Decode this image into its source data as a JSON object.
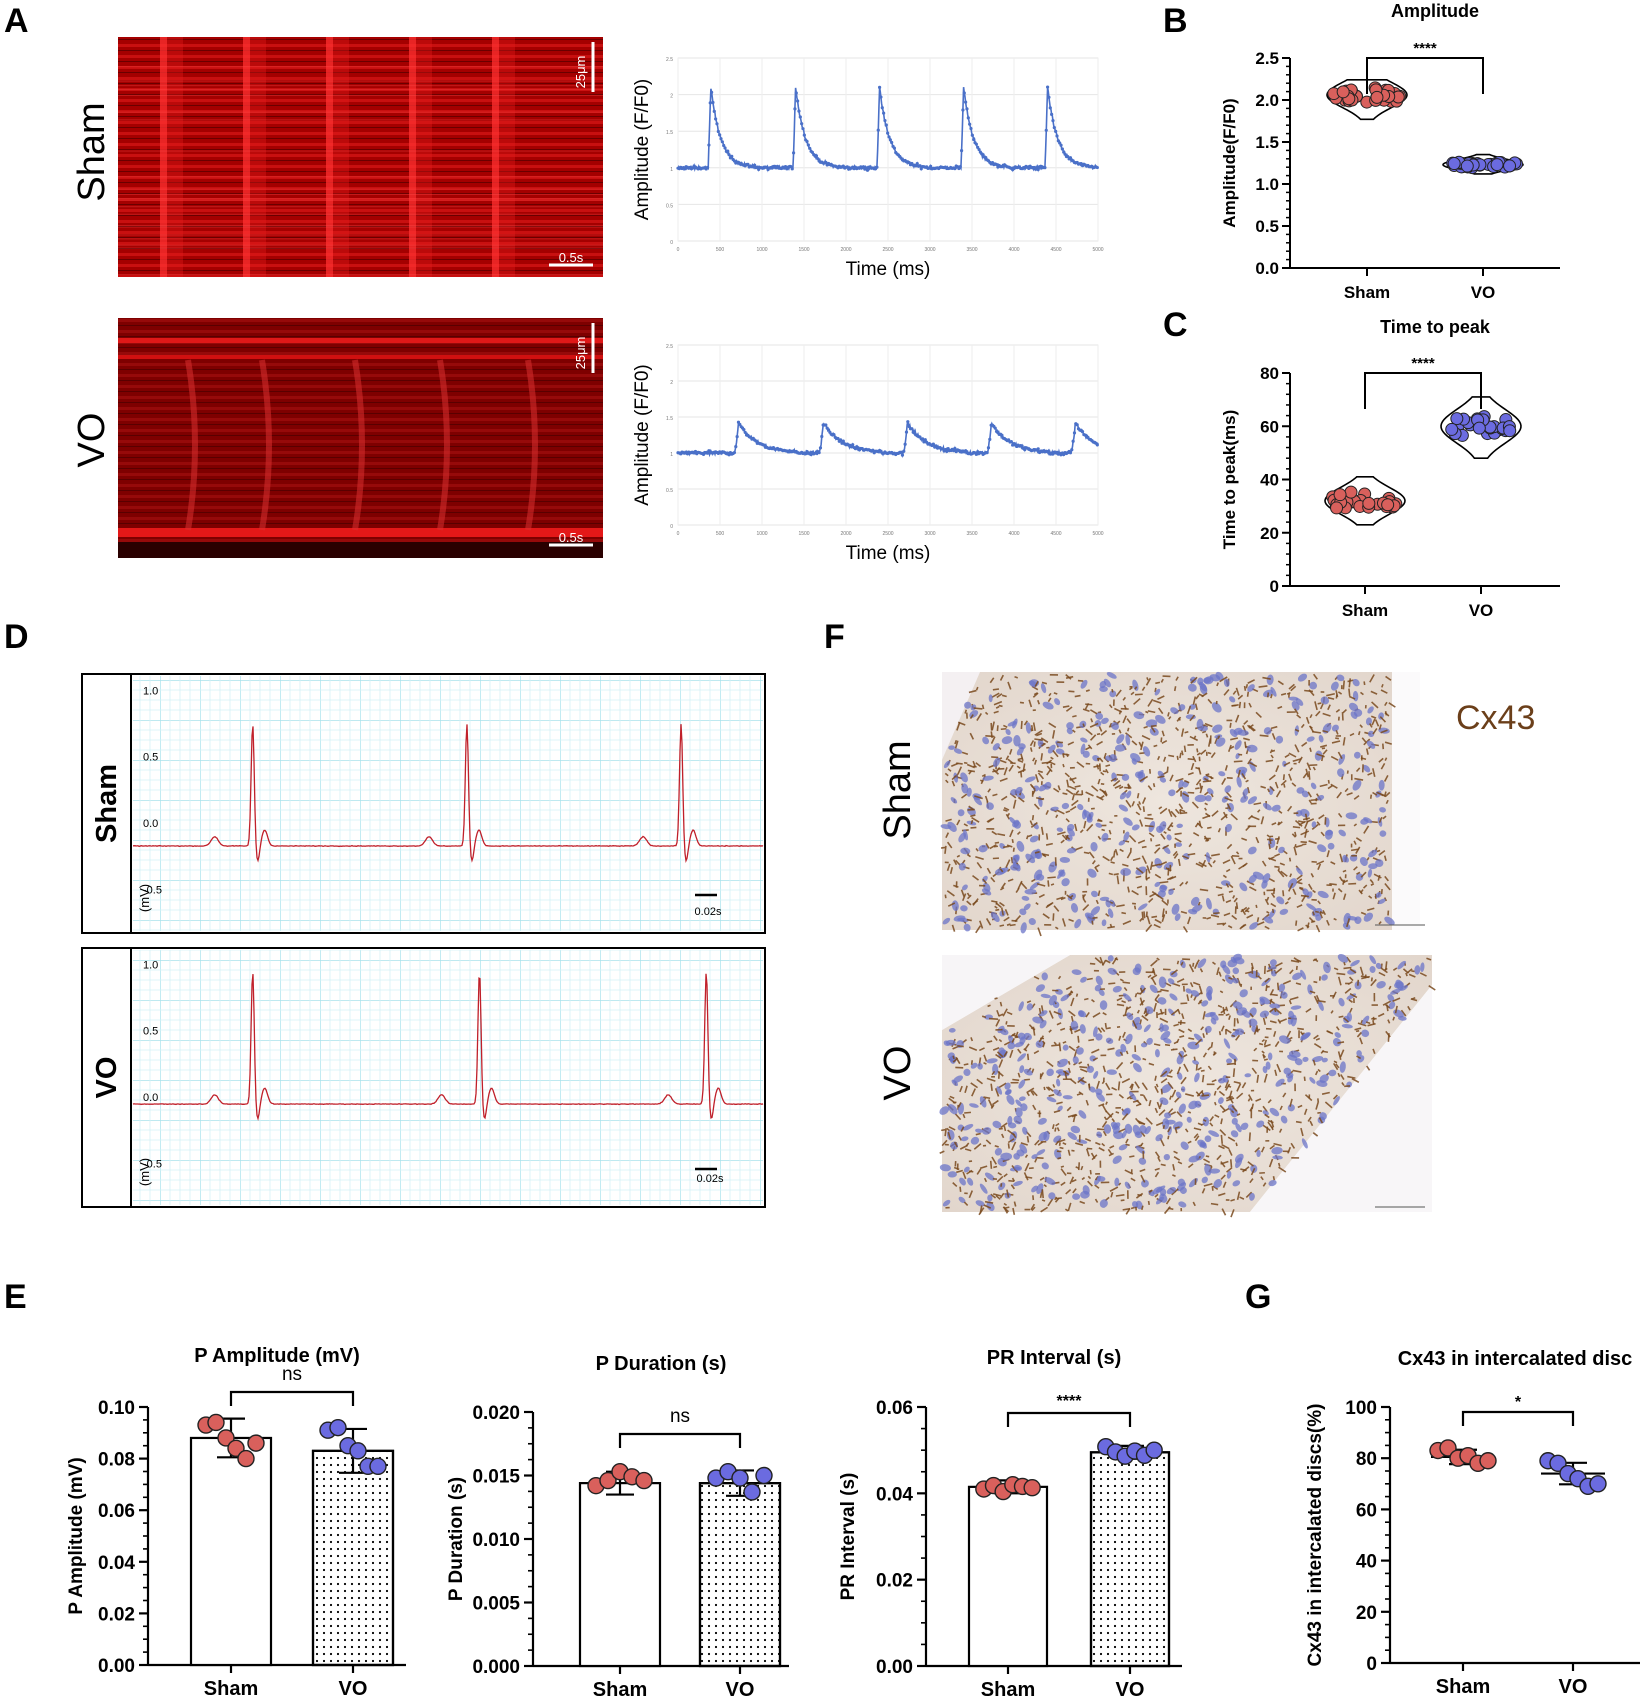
{
  "panels": {
    "A": {
      "letter": "A",
      "groups": [
        {
          "label": "Sham",
          "scale_space": "25μm",
          "scale_time": "0.5s"
        },
        {
          "label": "VO",
          "scale_space": "25μm",
          "scale_time": "0.5s"
        }
      ],
      "trace_ylabel": "Amplitude (F/F0)",
      "trace_xlabel": "Time (ms)",
      "trace_xticks": [
        "0",
        "500",
        "1000",
        "1500",
        "2000",
        "2500",
        "3000",
        "3500",
        "4000",
        "4500",
        "5000"
      ],
      "trace_yticks": [
        "0",
        "0.5",
        "1",
        "1.5",
        "2",
        "2.5"
      ]
    },
    "D": {
      "letter": "D",
      "groups": [
        {
          "label": "Sham",
          "scale": "0.02s"
        },
        {
          "label": "VO",
          "scale": "0.02s"
        }
      ],
      "yticks": [
        "1.0",
        "0.5",
        "0.0",
        "-0.5"
      ],
      "unit": "(mV)"
    },
    "F": {
      "letter": "F",
      "stain": "Cx43",
      "groups": [
        {
          "label": "Sham"
        },
        {
          "label": "VO"
        }
      ]
    },
    "E": {
      "letter": "E"
    },
    "G": {
      "letter": "G"
    }
  },
  "chart_data": [
    {
      "panel": "A",
      "type": "line",
      "group": "Sham",
      "xlabel": "Time (ms)",
      "ylabel": "Amplitude (F/F0)",
      "xlim": [
        0,
        5000
      ],
      "ylim": [
        0,
        2.5
      ],
      "peaks_ms": [
        360,
        1370,
        2370,
        3370,
        4370
      ],
      "baseline": 1.0,
      "peak_value": 2.1
    },
    {
      "panel": "A",
      "type": "line",
      "group": "VO",
      "xlabel": "Time (ms)",
      "ylabel": "Amplitude (F/F0)",
      "xlim": [
        0,
        5000
      ],
      "ylim": [
        0,
        2.5
      ],
      "peaks_ms": [
        720,
        1730,
        2730,
        3730,
        4730
      ],
      "baseline": 1.0,
      "peak_value": 1.42
    },
    {
      "panel": "B",
      "type": "scatter",
      "title": "Amplitude",
      "ylabel": "Amplitude(F/F0)",
      "categories": [
        "Sham",
        "VO"
      ],
      "yticks": [
        "0.0",
        "0.5",
        "1.0",
        "1.5",
        "2.0",
        "2.5"
      ],
      "ylim": [
        0,
        2.5
      ],
      "series": [
        {
          "group": "Sham",
          "center": 2.06,
          "spread": 0.12,
          "min": 1.77,
          "max": 2.24,
          "n": 40
        },
        {
          "group": "VO",
          "center": 1.23,
          "spread": 0.05,
          "min": 1.12,
          "max": 1.35,
          "n": 40
        }
      ],
      "significance": "****"
    },
    {
      "panel": "C",
      "type": "scatter",
      "title": "Time to peak",
      "ylabel": "Time to peak(ms)",
      "categories": [
        "Sham",
        "VO"
      ],
      "yticks": [
        "0",
        "20",
        "40",
        "60",
        "80"
      ],
      "ylim": [
        0,
        80
      ],
      "series": [
        {
          "group": "Sham",
          "center": 32,
          "spread": 4,
          "min": 23,
          "max": 41,
          "n": 30
        },
        {
          "group": "VO",
          "center": 60,
          "spread": 5,
          "min": 48,
          "max": 71,
          "n": 30
        }
      ],
      "significance": "****"
    },
    {
      "panel": "D",
      "type": "line",
      "group": "Sham",
      "ylabel": "(mV)",
      "ylim": [
        -0.7,
        1.1
      ],
      "beats_x": [
        0.19,
        0.53,
        0.87
      ],
      "r_peak": 0.8,
      "baseline": -0.12
    },
    {
      "panel": "D",
      "type": "line",
      "group": "VO",
      "ylabel": "(mV)",
      "ylim": [
        -0.7,
        1.1
      ],
      "beats_x": [
        0.19,
        0.55,
        0.91
      ],
      "r_peak": 1.0,
      "baseline": 0.0
    },
    {
      "panel": "E",
      "type": "bar",
      "title": "P Amplitude (mV)",
      "ylabel": "P Amplitude (mV)",
      "categories": [
        "Sham",
        "VO"
      ],
      "yticks": [
        "0.00",
        "0.02",
        "0.04",
        "0.06",
        "0.08",
        "0.10"
      ],
      "ylim": [
        0,
        0.1
      ],
      "values": [
        0.088,
        0.083
      ],
      "errors": [
        0.0075,
        0.0085
      ],
      "points": [
        [
          0.093,
          0.094,
          0.088,
          0.084,
          0.08,
          0.086
        ],
        [
          0.091,
          0.092,
          0.085,
          0.083,
          0.077,
          0.077
        ]
      ],
      "significance": "ns"
    },
    {
      "panel": "E",
      "type": "bar",
      "title": "P Duration (s)",
      "ylabel": "P Duration (s)",
      "categories": [
        "Sham",
        "VO"
      ],
      "yticks": [
        "0.000",
        "0.005",
        "0.010",
        "0.015",
        "0.020"
      ],
      "ylim": [
        0,
        0.02
      ],
      "values": [
        0.0144,
        0.0144
      ],
      "errors": [
        0.0009,
        0.001
      ],
      "points": [
        [
          0.0142,
          0.0146,
          0.0153,
          0.0149,
          0.0146
        ],
        [
          0.0148,
          0.0153,
          0.0148,
          0.0137,
          0.015
        ]
      ],
      "significance": "ns"
    },
    {
      "panel": "E",
      "type": "bar",
      "title": "PR Interval (s)",
      "ylabel": "PR Interval (s)",
      "categories": [
        "Sham",
        "VO"
      ],
      "yticks": [
        "0.00",
        "0.02",
        "0.04",
        "0.06"
      ],
      "ylim": [
        0,
        0.06
      ],
      "values": [
        0.0415,
        0.0495
      ],
      "errors": [
        0.0015,
        0.0015
      ],
      "points": [
        [
          0.041,
          0.0418,
          0.0404,
          0.042,
          0.0416,
          0.0413
        ],
        [
          0.0508,
          0.0496,
          0.0486,
          0.0498,
          0.0488,
          0.05
        ]
      ],
      "significance": "****"
    },
    {
      "panel": "G",
      "type": "scatter",
      "title": "Cx43 in intercalated disc",
      "ylabel": "Cx43 in intercalated discs(%)",
      "categories": [
        "Sham",
        "VO"
      ],
      "yticks": [
        "0",
        "20",
        "40",
        "60",
        "80",
        "100"
      ],
      "ylim": [
        0,
        100
      ],
      "values": [
        80.5,
        74
      ],
      "errors": [
        2.8,
        4.2
      ],
      "points": [
        [
          83,
          84,
          80,
          81,
          78,
          79
        ],
        [
          79,
          78,
          74,
          72,
          69,
          70
        ]
      ],
      "significance": "*"
    }
  ],
  "colors": {
    "sham_point": "#d9605c",
    "vo_point": "#6b6be0",
    "trace": "#4a70c8",
    "ecg": "#c0202a",
    "ecg_grid": "#a8e2ec",
    "linescan_red": "#c00000",
    "brown": "#6b3f1a"
  }
}
